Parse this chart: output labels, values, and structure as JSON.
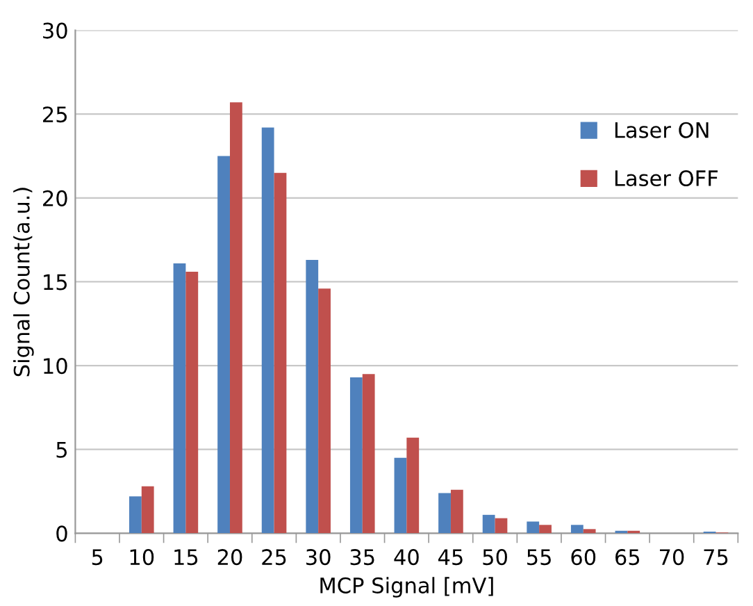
{
  "chart_data": {
    "type": "bar",
    "xlabel": "MCP Signal [mV]",
    "ylabel": "Signal Count(a.u.)",
    "categories": [
      "5",
      "10",
      "15",
      "20",
      "25",
      "30",
      "35",
      "40",
      "45",
      "50",
      "55",
      "60",
      "65",
      "70",
      "75"
    ],
    "series": [
      {
        "name": "Laser ON",
        "color": "#4f81bd",
        "values": [
          0,
          2.2,
          16.1,
          22.5,
          24.2,
          16.3,
          9.3,
          4.5,
          2.4,
          1.1,
          0.7,
          0.5,
          0.15,
          0,
          0.1
        ]
      },
      {
        "name": "Laser OFF",
        "color": "#c0504d",
        "values": [
          0,
          2.8,
          15.6,
          25.7,
          21.5,
          14.6,
          9.5,
          5.7,
          2.6,
          0.9,
          0.5,
          0.25,
          0.15,
          0,
          0.05
        ]
      }
    ],
    "ylim": [
      0,
      30
    ],
    "yticks": [
      0,
      5,
      10,
      15,
      20,
      25,
      30
    ],
    "grid": "y",
    "legend": "right"
  }
}
